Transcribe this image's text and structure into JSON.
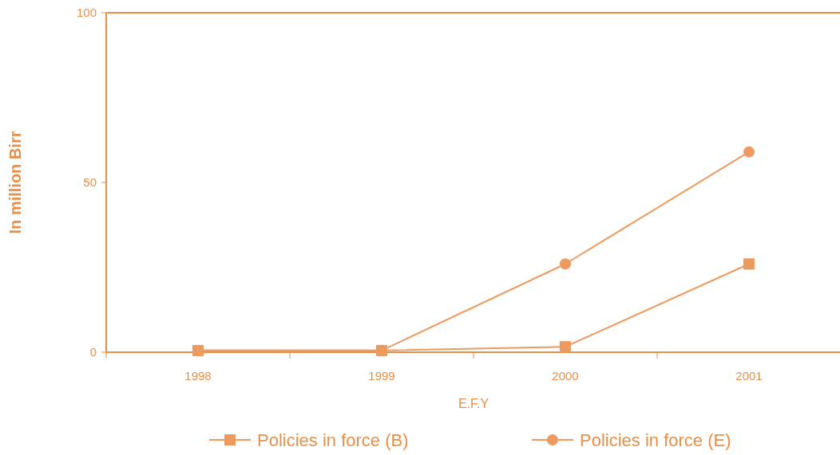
{
  "chart_data": {
    "type": "line",
    "xlabel": "E.F.Y",
    "ylabel": "In million Birr",
    "categories": [
      "1998",
      "1999",
      "2000",
      "2001"
    ],
    "series": [
      {
        "name": "Policies in force (B)",
        "color": "#ec9a5e",
        "marker": "square",
        "values": [
          0.5,
          0.5,
          1.6,
          26
        ]
      },
      {
        "name": "Policies in force (E)",
        "color": "#ec9a5e",
        "marker": "circle",
        "values": [
          0.5,
          0.5,
          26,
          59
        ]
      }
    ],
    "ylim": [
      0,
      100
    ],
    "yticks": [
      0,
      50,
      100
    ],
    "grid": false,
    "legend": "bottom"
  }
}
